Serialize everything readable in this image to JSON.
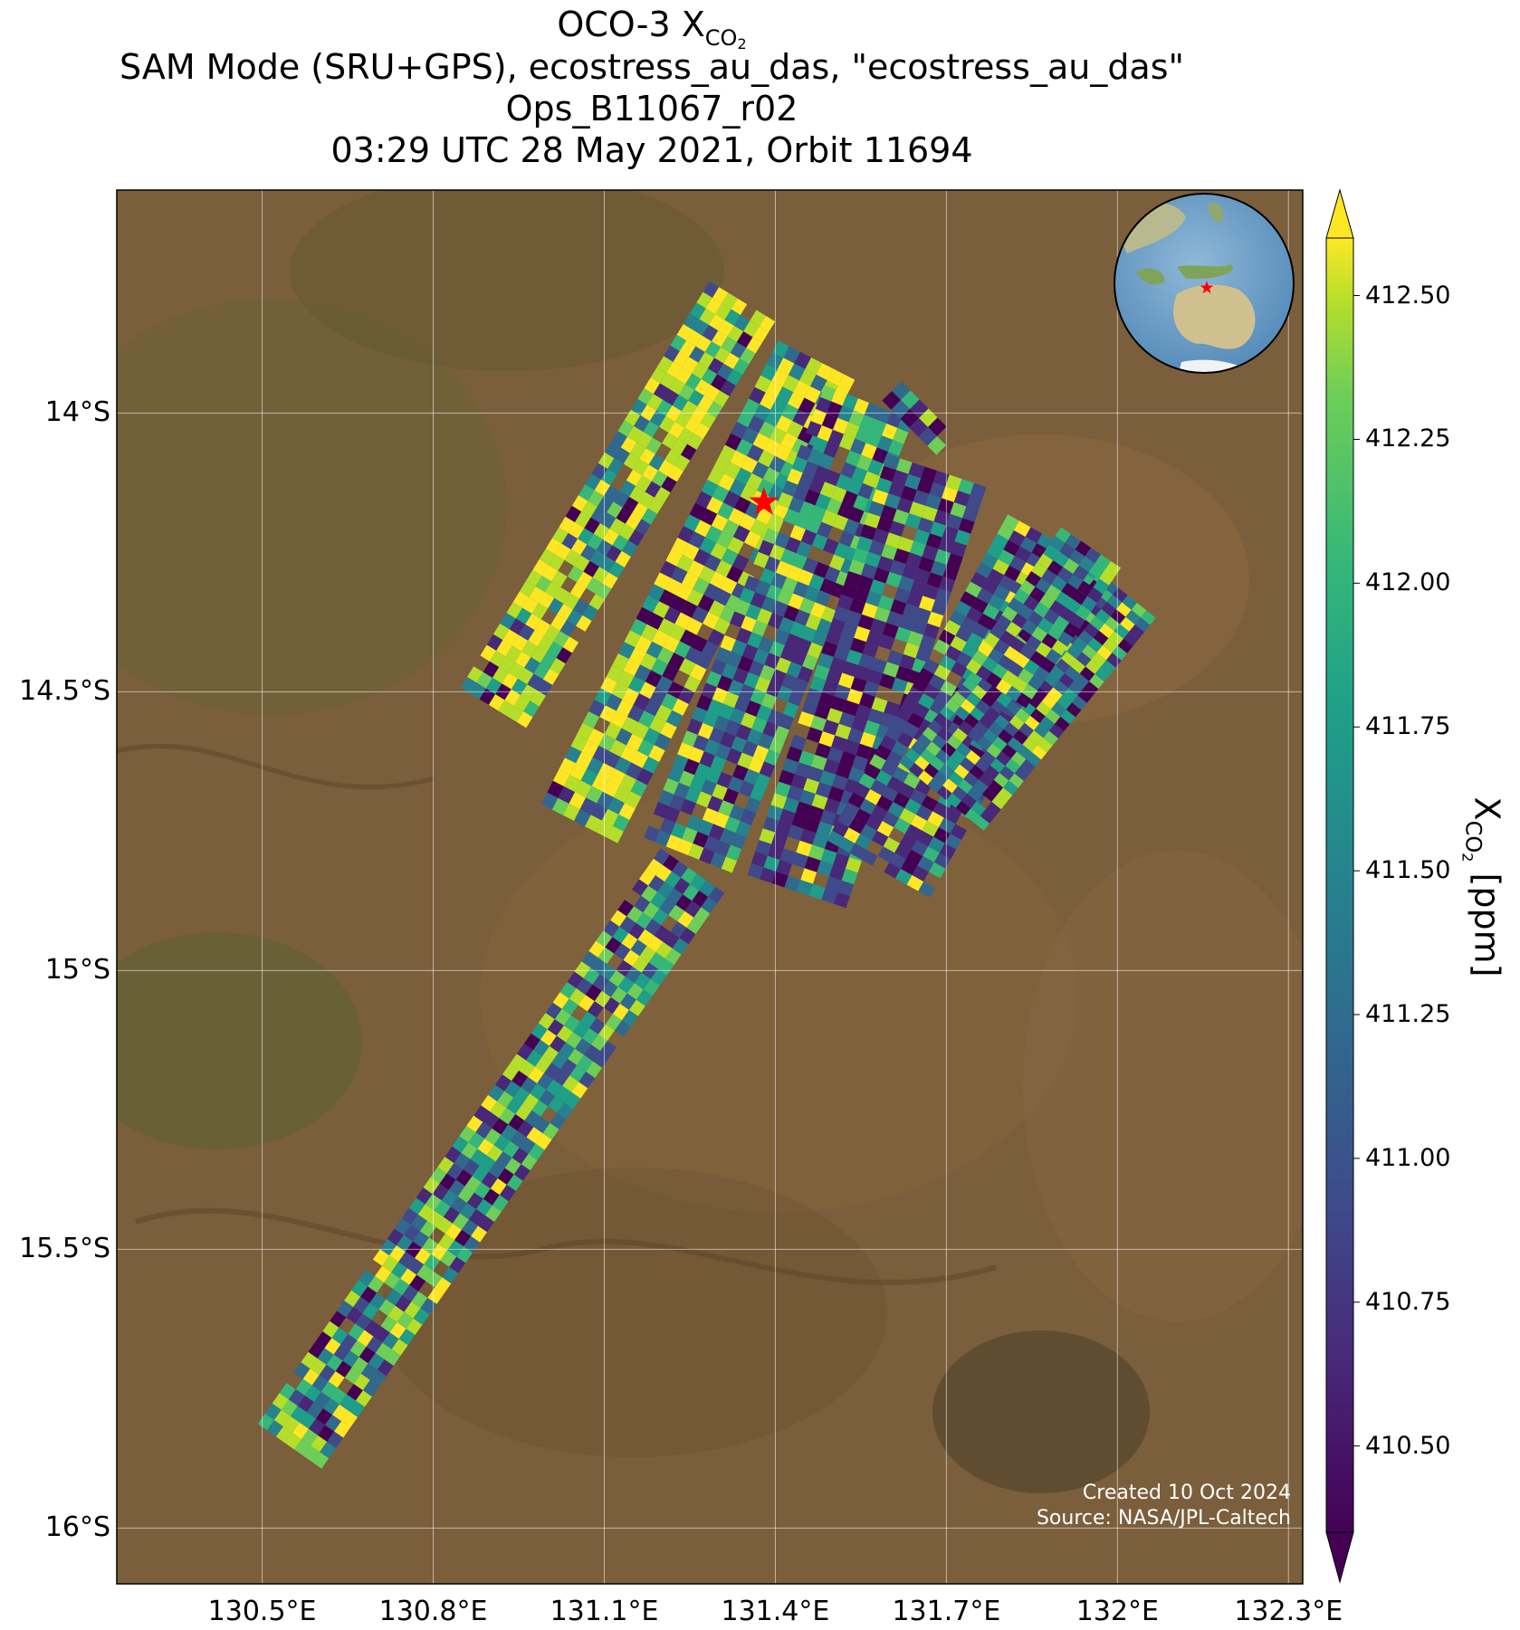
{
  "title": {
    "line1_prefix": "OCO-3 X",
    "line1_sub": "CO",
    "line1_sub2": "2",
    "line2": "SAM Mode (SRU+GPS), ecostress_au_das, \"ecostress_au_das\"",
    "line3": "Ops_B11067_r02",
    "line4": "03:29 UTC 28 May 2021, Orbit 11694"
  },
  "map": {
    "lon_range": [
      130.245,
      132.325
    ],
    "lat_range": [
      -16.1,
      -13.6
    ],
    "lon_ticks": [
      {
        "value": 130.5,
        "label": "130.5°E"
      },
      {
        "value": 130.8,
        "label": "130.8°E"
      },
      {
        "value": 131.1,
        "label": "131.1°E"
      },
      {
        "value": 131.4,
        "label": "131.4°E"
      },
      {
        "value": 131.7,
        "label": "131.7°E"
      },
      {
        "value": 132.0,
        "label": "132°E"
      },
      {
        "value": 132.3,
        "label": "132.3°E"
      }
    ],
    "lat_ticks": [
      {
        "value": -14.0,
        "label": "14°S"
      },
      {
        "value": -14.5,
        "label": "14.5°S"
      },
      {
        "value": -15.0,
        "label": "15°S"
      },
      {
        "value": -15.5,
        "label": "15.5°S"
      },
      {
        "value": -16.0,
        "label": "16°S"
      }
    ],
    "grid": true,
    "basemap": "satellite imagery",
    "target_marker": {
      "lon": 131.38,
      "lat": -14.16,
      "symbol": "red star"
    },
    "inset_globe": {
      "view": "Australia / Southeast Asia",
      "marker": "red star"
    }
  },
  "colorbar": {
    "title_prefix": "X",
    "title_sub": "CO",
    "title_sub2": "2",
    "title_suffix": " [ppm]",
    "vmin": 410.35,
    "vmax": 412.6,
    "extend": "both",
    "colormap": "viridis",
    "ticks": [
      "412.50",
      "412.25",
      "412.00",
      "411.75",
      "411.50",
      "411.25",
      "411.00",
      "410.75",
      "410.50"
    ]
  },
  "credits": {
    "created": "Created 10 Oct 2024",
    "source": "Source: NASA/JPL-Caltech"
  }
}
